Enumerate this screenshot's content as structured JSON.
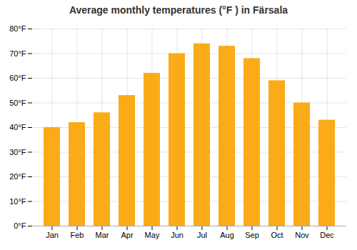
{
  "chart_data": {
    "type": "bar",
    "title": "Average monthly temperatures (°F ) in Färsala",
    "categories": [
      "Jan",
      "Feb",
      "Mar",
      "Apr",
      "May",
      "Jun",
      "Jul",
      "Aug",
      "Sep",
      "Oct",
      "Nov",
      "Dec"
    ],
    "values": [
      40,
      42,
      46,
      53,
      62,
      70,
      74,
      73,
      68,
      59,
      50,
      43
    ],
    "color": "#FBAB18",
    "ylim": [
      0,
      80
    ],
    "yticks": [
      {
        "value": 0,
        "label": "0°F"
      },
      {
        "value": 10,
        "label": "10°F"
      },
      {
        "value": 20,
        "label": "20°F"
      },
      {
        "value": 30,
        "label": "30°F"
      },
      {
        "value": 40,
        "label": "40°F"
      },
      {
        "value": 50,
        "label": "50°F"
      },
      {
        "value": 60,
        "label": "60°F"
      },
      {
        "value": 70,
        "label": "70°F"
      },
      {
        "value": 80,
        "label": "80°F"
      }
    ],
    "grid": true
  }
}
